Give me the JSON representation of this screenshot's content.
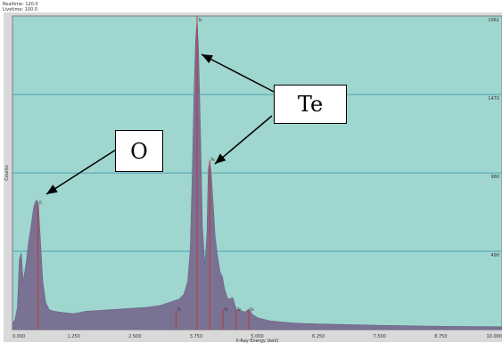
{
  "header": {
    "realtime": "Realtime: 120.0",
    "livetime": "Livetime: 100.0"
  },
  "chart_data": {
    "type": "area",
    "title": "",
    "xlabel": "X-Ray Energy (keV)",
    "ylabel": "Counts",
    "xlim": [
      0.0,
      10.0
    ],
    "ylim": [
      0,
      1961
    ],
    "x_ticks": [
      "0.000",
      "1.250",
      "2.500",
      "3.750",
      "5.000",
      "6.250",
      "7.500",
      "8.750",
      "10.000"
    ],
    "y_ticks": [
      {
        "value": 490,
        "label": "490"
      },
      {
        "value": 980,
        "label": "980"
      },
      {
        "value": 1470,
        "label": "1470"
      },
      {
        "value": 1961,
        "label": "1961"
      }
    ],
    "grid": true,
    "colors": {
      "plot_bg": "#9fd6cf",
      "spectrum": "#7a7292",
      "marker": "#cc2e2e",
      "grid": "#4ea0b4"
    },
    "peak_labels": [
      {
        "label": "O",
        "energy": 0.52
      },
      {
        "label": "Te",
        "energy": 3.77
      },
      {
        "label": "Te",
        "energy": 4.03
      }
    ],
    "minor_labels": [
      {
        "label": "Te",
        "energy": 3.34
      },
      {
        "label": "Te",
        "energy": 4.3
      },
      {
        "label": "Te",
        "energy": 4.57
      },
      {
        "label": "Te",
        "energy": 4.83
      }
    ],
    "spectrum": [
      [
        0.0,
        40
      ],
      [
        0.05,
        60
      ],
      [
        0.1,
        140
      ],
      [
        0.14,
        440
      ],
      [
        0.18,
        480
      ],
      [
        0.22,
        300
      ],
      [
        0.28,
        420
      ],
      [
        0.33,
        550
      ],
      [
        0.38,
        650
      ],
      [
        0.43,
        760
      ],
      [
        0.47,
        800
      ],
      [
        0.5,
        810
      ],
      [
        0.53,
        780
      ],
      [
        0.57,
        560
      ],
      [
        0.62,
        300
      ],
      [
        0.68,
        170
      ],
      [
        0.75,
        125
      ],
      [
        0.85,
        115
      ],
      [
        1.0,
        108
      ],
      [
        1.25,
        100
      ],
      [
        1.5,
        115
      ],
      [
        1.75,
        120
      ],
      [
        2.0,
        125
      ],
      [
        2.25,
        130
      ],
      [
        2.5,
        135
      ],
      [
        2.75,
        140
      ],
      [
        3.0,
        150
      ],
      [
        3.2,
        170
      ],
      [
        3.3,
        180
      ],
      [
        3.4,
        190
      ],
      [
        3.5,
        220
      ],
      [
        3.58,
        300
      ],
      [
        3.63,
        500
      ],
      [
        3.67,
        950
      ],
      [
        3.71,
        1500
      ],
      [
        3.74,
        1800
      ],
      [
        3.77,
        1940
      ],
      [
        3.8,
        1750
      ],
      [
        3.84,
        1250
      ],
      [
        3.88,
        650
      ],
      [
        3.93,
        400
      ],
      [
        3.97,
        600
      ],
      [
        4.0,
        1000
      ],
      [
        4.03,
        1050
      ],
      [
        4.06,
        980
      ],
      [
        4.1,
        780
      ],
      [
        4.14,
        580
      ],
      [
        4.19,
        460
      ],
      [
        4.24,
        360
      ],
      [
        4.29,
        330
      ],
      [
        4.33,
        260
      ],
      [
        4.4,
        190
      ],
      [
        4.5,
        200
      ],
      [
        4.57,
        130
      ],
      [
        4.65,
        120
      ],
      [
        4.75,
        110
      ],
      [
        4.83,
        130
      ],
      [
        4.9,
        95
      ],
      [
        5.0,
        75
      ],
      [
        5.25,
        55
      ],
      [
        5.5,
        48
      ],
      [
        5.75,
        42
      ],
      [
        6.0,
        38
      ],
      [
        6.5,
        34
      ],
      [
        7.0,
        30
      ],
      [
        7.5,
        27
      ],
      [
        8.0,
        25
      ],
      [
        8.5,
        22
      ],
      [
        9.0,
        20
      ],
      [
        9.5,
        19
      ],
      [
        10.0,
        18
      ]
    ]
  },
  "callouts": {
    "o_label": "O",
    "te_label": "Te"
  }
}
